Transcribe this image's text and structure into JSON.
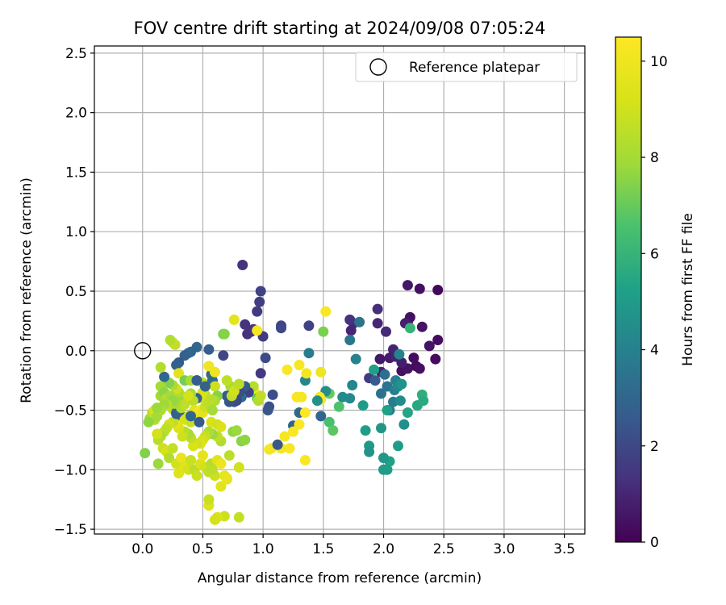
{
  "chart_data": {
    "type": "scatter",
    "title": "FOV centre drift starting at 2024/09/08 07:05:24",
    "xlabel": "Angular distance from reference (arcmin)",
    "ylabel": "Rotation from reference (arcmin)",
    "xlim": [
      -0.4,
      3.67
    ],
    "ylim": [
      -1.54,
      2.56
    ],
    "x_ticks": [
      0.0,
      0.5,
      1.0,
      1.5,
      2.0,
      2.5,
      3.0,
      3.5
    ],
    "x_tick_labels": [
      "0.0",
      "0.5",
      "1.0",
      "1.5",
      "2.0",
      "2.5",
      "3.0",
      "3.5"
    ],
    "y_ticks": [
      -1.5,
      -1.0,
      -0.5,
      0.0,
      0.5,
      1.0,
      1.5,
      2.0,
      2.5
    ],
    "y_tick_labels": [
      "−1.5",
      "−1.0",
      "−0.5",
      "0.0",
      "0.5",
      "1.0",
      "1.5",
      "2.0",
      "2.5"
    ],
    "grid": true,
    "legend": {
      "position": "top-right",
      "entries": [
        "Reference platepar"
      ]
    },
    "reference_point": {
      "x": 0.0,
      "y": 0.0,
      "name": "Reference platepar"
    },
    "colorbar": {
      "label": "Hours from first FF file",
      "colormap": "viridis",
      "range": [
        0,
        10.5
      ],
      "ticks": [
        0,
        2,
        4,
        6,
        8,
        10
      ],
      "tick_labels": [
        "0",
        "2",
        "4",
        "6",
        "8",
        "10"
      ]
    },
    "points": [
      [
        2.45,
        0.51,
        0.2
      ],
      [
        2.45,
        0.09,
        0.3
      ],
      [
        2.43,
        -0.07,
        0.3
      ],
      [
        2.38,
        0.04,
        0.5
      ],
      [
        2.3,
        0.52,
        0.4
      ],
      [
        2.2,
        0.55,
        0.6
      ],
      [
        2.22,
        0.28,
        0.4
      ],
      [
        2.2,
        0.24,
        0.5
      ],
      [
        2.18,
        0.23,
        0.8
      ],
      [
        2.15,
        -0.17,
        0.4
      ],
      [
        2.2,
        -0.15,
        0.5
      ],
      [
        2.27,
        -0.13,
        0.3
      ],
      [
        2.3,
        -0.15,
        0.4
      ],
      [
        2.32,
        0.2,
        0.5
      ],
      [
        2.25,
        -0.06,
        0.3
      ],
      [
        2.08,
        0.01,
        0.9
      ],
      [
        2.02,
        0.16,
        1.1
      ],
      [
        1.97,
        -0.07,
        0.6
      ],
      [
        1.98,
        -0.18,
        0.8
      ],
      [
        1.95,
        0.35,
        1.2
      ],
      [
        1.95,
        0.23,
        1.0
      ],
      [
        1.75,
        0.23,
        1.1
      ],
      [
        1.73,
        0.17,
        1.0
      ],
      [
        1.72,
        0.26,
        1.3
      ],
      [
        2.05,
        -0.06,
        0.7
      ],
      [
        2.1,
        -0.05,
        0.9
      ],
      [
        2.15,
        -0.1,
        0.8
      ],
      [
        1.88,
        -0.23,
        1.6
      ],
      [
        1.93,
        -0.25,
        2.6
      ],
      [
        1.98,
        -0.36,
        3.4
      ],
      [
        2.01,
        -0.2,
        3.3
      ],
      [
        2.03,
        -0.3,
        3.5
      ],
      [
        2.05,
        -0.5,
        3.6
      ],
      [
        2.08,
        -0.43,
        3.8
      ],
      [
        2.09,
        -0.33,
        3.9
      ],
      [
        2.1,
        -0.25,
        4.0
      ],
      [
        2.12,
        -0.3,
        4.3
      ],
      [
        2.14,
        -0.42,
        4.4
      ],
      [
        2.13,
        -0.03,
        4.1
      ],
      [
        2.15,
        -0.28,
        4.7
      ],
      [
        2.17,
        -0.62,
        4.5
      ],
      [
        2.12,
        -0.8,
        5.1
      ],
      [
        2.2,
        -0.52,
        5.4
      ],
      [
        2.22,
        0.19,
        6.0
      ],
      [
        2.28,
        -0.46,
        5.5
      ],
      [
        2.32,
        -0.37,
        5.8
      ],
      [
        2.33,
        -0.42,
        5.6
      ],
      [
        2.03,
        -0.5,
        5.2
      ],
      [
        2.05,
        -0.93,
        5.3
      ],
      [
        1.92,
        -0.16,
        5.2
      ],
      [
        1.83,
        -0.46,
        5.0
      ],
      [
        1.85,
        -0.67,
        5.1
      ],
      [
        1.88,
        -0.8,
        4.9
      ],
      [
        1.88,
        -0.85,
        4.7
      ],
      [
        1.98,
        -0.65,
        4.8
      ],
      [
        2.0,
        -0.9,
        4.9
      ],
      [
        2.0,
        -1.0,
        5.0
      ],
      [
        2.03,
        -1.0,
        5.1
      ],
      [
        1.77,
        -0.07,
        4.1
      ],
      [
        1.74,
        -0.29,
        4.2
      ],
      [
        1.72,
        -0.4,
        4.3
      ],
      [
        1.66,
        -0.39,
        4.4
      ],
      [
        1.63,
        -0.47,
        6.6
      ],
      [
        1.55,
        -0.36,
        7.0
      ],
      [
        1.52,
        -0.34,
        4.5
      ],
      [
        1.55,
        -0.6,
        6.5
      ],
      [
        1.58,
        -0.67,
        6.8
      ],
      [
        1.5,
        0.16,
        7.3
      ],
      [
        1.48,
        -0.41,
        10.3
      ],
      [
        1.47,
        -0.39,
        10.4
      ],
      [
        1.45,
        -0.42,
        4.6
      ],
      [
        1.38,
        -0.02,
        3.8
      ],
      [
        1.35,
        -0.25,
        4.2
      ],
      [
        1.48,
        -0.55,
        3.0
      ],
      [
        1.3,
        -0.52,
        3.1
      ],
      [
        1.25,
        -0.63,
        2.9
      ],
      [
        1.72,
        0.09,
        3.6
      ],
      [
        1.8,
        0.24,
        3.5
      ],
      [
        1.35,
        -0.92,
        10.4
      ],
      [
        1.35,
        -0.52,
        10.5
      ],
      [
        1.32,
        -0.39,
        10.2
      ],
      [
        1.28,
        -0.39,
        10.3
      ],
      [
        1.3,
        -0.62,
        10.4
      ],
      [
        1.25,
        -0.68,
        10.4
      ],
      [
        1.22,
        -0.82,
        10.3
      ],
      [
        1.18,
        -0.72,
        10.2
      ],
      [
        1.15,
        -0.82,
        10.1
      ],
      [
        1.07,
        -0.82,
        10.2
      ],
      [
        1.05,
        -0.83,
        10.2
      ],
      [
        1.2,
        -0.16,
        10.4
      ],
      [
        1.3,
        -0.12,
        10.3
      ],
      [
        1.36,
        -0.19,
        10.2
      ],
      [
        1.48,
        -0.18,
        10.0
      ],
      [
        1.52,
        0.33,
        10.4
      ],
      [
        1.38,
        0.21,
        1.8
      ],
      [
        1.15,
        0.21,
        1.9
      ],
      [
        1.15,
        0.19,
        2.0
      ],
      [
        1.12,
        -0.79,
        2.5
      ],
      [
        1.08,
        -0.37,
        2.2
      ],
      [
        1.05,
        -0.47,
        2.3
      ],
      [
        1.04,
        -0.5,
        2.4
      ],
      [
        1.02,
        -0.06,
        2.1
      ],
      [
        0.98,
        0.5,
        1.8
      ],
      [
        0.97,
        0.41,
        1.7
      ],
      [
        0.95,
        0.33,
        1.6
      ],
      [
        0.92,
        0.18,
        1.5
      ],
      [
        0.9,
        0.16,
        1.4
      ],
      [
        0.87,
        0.14,
        1.3
      ],
      [
        0.83,
        0.72,
        1.3
      ],
      [
        0.85,
        0.22,
        1.4
      ],
      [
        0.98,
        -0.19,
        1.5
      ],
      [
        1.0,
        0.12,
        1.6
      ],
      [
        0.95,
        0.17,
        10.2
      ],
      [
        0.92,
        -0.32,
        10.1
      ],
      [
        0.93,
        -0.35,
        10.3
      ],
      [
        0.95,
        -0.4,
        6.9
      ],
      [
        0.96,
        -0.42,
        8.3
      ],
      [
        0.98,
        -0.38,
        8.6
      ],
      [
        0.92,
        -0.3,
        8.4
      ],
      [
        0.88,
        -0.35,
        1.8
      ],
      [
        0.85,
        -0.3,
        2.6
      ],
      [
        0.82,
        -0.39,
        3.2
      ],
      [
        0.8,
        -0.35,
        2.2
      ],
      [
        0.78,
        -0.42,
        1.9
      ],
      [
        0.76,
        -0.43,
        2.1
      ],
      [
        0.76,
        0.26,
        9.6
      ],
      [
        0.73,
        -0.3,
        8.1
      ],
      [
        0.7,
        -0.25,
        8.6
      ],
      [
        0.67,
        0.14,
        7.2
      ],
      [
        0.68,
        0.14,
        7.5
      ],
      [
        0.67,
        -0.04,
        1.9
      ],
      [
        0.7,
        -0.38,
        2.6
      ],
      [
        0.72,
        -0.43,
        2.4
      ],
      [
        0.74,
        -0.38,
        8.7
      ],
      [
        0.76,
        -0.34,
        9.0
      ],
      [
        0.8,
        -0.28,
        8.5
      ],
      [
        0.55,
        0.01,
        2.7
      ],
      [
        0.45,
        0.03,
        3.0
      ],
      [
        0.4,
        -0.01,
        2.9
      ],
      [
        0.38,
        -0.02,
        3.1
      ],
      [
        0.35,
        -0.04,
        2.8
      ],
      [
        0.3,
        -0.1,
        2.5
      ],
      [
        0.28,
        -0.12,
        2.9
      ],
      [
        0.25,
        0.07,
        9.1
      ],
      [
        0.27,
        0.05,
        8.7
      ],
      [
        0.23,
        0.09,
        8.3
      ],
      [
        0.3,
        -0.19,
        9.5
      ],
      [
        0.35,
        -0.25,
        7.2
      ],
      [
        0.4,
        -0.25,
        8.1
      ],
      [
        0.45,
        -0.25,
        2.6
      ],
      [
        0.5,
        -0.27,
        8.4
      ],
      [
        0.57,
        -0.2,
        3.0
      ],
      [
        0.58,
        -0.25,
        3.1
      ],
      [
        0.6,
        -0.3,
        8.9
      ],
      [
        0.6,
        -0.18,
        9.9
      ],
      [
        0.55,
        -0.13,
        10.0
      ],
      [
        0.62,
        -0.38,
        7.5
      ],
      [
        0.6,
        -0.42,
        8.2
      ],
      [
        0.57,
        -0.41,
        8.4
      ],
      [
        0.52,
        -0.37,
        8.6
      ],
      [
        0.5,
        -0.4,
        8.7
      ],
      [
        0.5,
        -0.35,
        9.1
      ],
      [
        0.48,
        -0.38,
        9.3
      ],
      [
        0.45,
        -0.4,
        2.8
      ],
      [
        0.42,
        -0.42,
        8.5
      ],
      [
        0.4,
        -0.36,
        8.0
      ],
      [
        0.35,
        -0.42,
        7.6
      ],
      [
        0.32,
        -0.38,
        7.8
      ],
      [
        0.3,
        -0.35,
        8.2
      ],
      [
        0.28,
        -0.32,
        9.0
      ],
      [
        0.25,
        -0.29,
        8.1
      ],
      [
        0.22,
        -0.27,
        7.4
      ],
      [
        0.18,
        -0.22,
        3.0
      ],
      [
        0.15,
        -0.14,
        8.3
      ],
      [
        0.15,
        -0.3,
        8.0
      ],
      [
        0.15,
        -0.38,
        7.9
      ],
      [
        0.18,
        -0.35,
        7.6
      ],
      [
        0.2,
        -0.4,
        8.4
      ],
      [
        0.23,
        -0.38,
        8.0
      ],
      [
        0.25,
        -0.49,
        8.6
      ],
      [
        0.28,
        -0.52,
        3.1
      ],
      [
        0.3,
        -0.5,
        8.9
      ],
      [
        0.32,
        -0.55,
        2.8
      ],
      [
        0.35,
        -0.58,
        9.2
      ],
      [
        0.38,
        -0.55,
        9.0
      ],
      [
        0.4,
        -0.6,
        8.8
      ],
      [
        0.43,
        -0.5,
        9.5
      ],
      [
        0.45,
        -0.52,
        9.8
      ],
      [
        0.48,
        -0.5,
        10.1
      ],
      [
        0.5,
        -0.52,
        9.6
      ],
      [
        0.52,
        -0.47,
        8.9
      ],
      [
        0.55,
        -0.45,
        8.5
      ],
      [
        0.57,
        -0.6,
        9.3
      ],
      [
        0.58,
        -0.5,
        8.0
      ],
      [
        0.62,
        -0.62,
        9.0
      ],
      [
        0.65,
        -0.64,
        9.3
      ],
      [
        0.65,
        -0.76,
        8.3
      ],
      [
        0.62,
        -0.72,
        8.6
      ],
      [
        0.58,
        -0.7,
        7.8
      ],
      [
        0.55,
        -0.68,
        8.2
      ],
      [
        0.52,
        -0.72,
        8.8
      ],
      [
        0.5,
        -0.75,
        9.1
      ],
      [
        0.48,
        -0.78,
        9.4
      ],
      [
        0.45,
        -0.78,
        9.0
      ],
      [
        0.42,
        -0.8,
        9.2
      ],
      [
        0.4,
        -0.73,
        8.6
      ],
      [
        0.38,
        -0.7,
        8.1
      ],
      [
        0.35,
        -0.68,
        8.4
      ],
      [
        0.33,
        -0.72,
        8.9
      ],
      [
        0.3,
        -0.65,
        9.2
      ],
      [
        0.28,
        -0.62,
        9.5
      ],
      [
        0.25,
        -0.6,
        8.6
      ],
      [
        0.22,
        -0.62,
        9.0
      ],
      [
        0.2,
        -0.65,
        8.7
      ],
      [
        0.18,
        -0.68,
        8.5
      ],
      [
        0.15,
        -0.72,
        8.1
      ],
      [
        0.13,
        -0.75,
        8.4
      ],
      [
        0.12,
        -0.7,
        9.1
      ],
      [
        0.1,
        -0.58,
        8.3
      ],
      [
        0.08,
        -0.55,
        8.0
      ],
      [
        0.06,
        -0.57,
        7.8
      ],
      [
        0.05,
        -0.6,
        7.6
      ],
      [
        0.08,
        -0.52,
        8.6
      ],
      [
        0.1,
        -0.5,
        9.3
      ],
      [
        0.12,
        -0.55,
        8.0
      ],
      [
        0.02,
        -0.86,
        7.4
      ],
      [
        0.13,
        -0.95,
        7.8
      ],
      [
        0.17,
        -0.82,
        8.9
      ],
      [
        0.2,
        -0.85,
        9.2
      ],
      [
        0.22,
        -0.9,
        8.3
      ],
      [
        0.25,
        -0.82,
        8.7
      ],
      [
        0.28,
        -0.95,
        9.0
      ],
      [
        0.3,
        -1.03,
        9.4
      ],
      [
        0.32,
        -0.9,
        9.8
      ],
      [
        0.35,
        -0.97,
        9.5
      ],
      [
        0.38,
        -1.0,
        9.1
      ],
      [
        0.4,
        -0.92,
        8.8
      ],
      [
        0.43,
        -1.0,
        8.5
      ],
      [
        0.45,
        -1.05,
        8.9
      ],
      [
        0.48,
        -0.95,
        9.3
      ],
      [
        0.5,
        -0.88,
        9.6
      ],
      [
        0.52,
        -0.98,
        9.0
      ],
      [
        0.55,
        -1.02,
        8.7
      ],
      [
        0.57,
        -0.95,
        8.4
      ],
      [
        0.6,
        -1.05,
        8.9
      ],
      [
        0.62,
        -0.92,
        9.5
      ],
      [
        0.65,
        -0.95,
        9.9
      ],
      [
        0.68,
        -1.05,
        9.7
      ],
      [
        0.7,
        -1.08,
        9.4
      ],
      [
        0.72,
        -0.88,
        8.5
      ],
      [
        0.75,
        -0.68,
        7.6
      ],
      [
        0.78,
        -0.67,
        7.8
      ],
      [
        0.8,
        -0.98,
        9.0
      ],
      [
        0.82,
        -0.76,
        7.5
      ],
      [
        0.85,
        -0.75,
        7.6
      ],
      [
        0.8,
        -1.4,
        8.7
      ],
      [
        0.68,
        -1.39,
        8.9
      ],
      [
        0.62,
        -1.4,
        9.3
      ],
      [
        0.6,
        -1.42,
        9.1
      ],
      [
        0.55,
        -1.3,
        9.4
      ],
      [
        0.55,
        -1.25,
        8.8
      ],
      [
        0.65,
        -1.14,
        9.5
      ],
      [
        0.7,
        -1.07,
        9.8
      ],
      [
        0.58,
        -1.0,
        8.5
      ],
      [
        0.45,
        -0.25,
        2.7
      ],
      [
        0.52,
        -0.3,
        2.9
      ],
      [
        0.47,
        -0.6,
        2.6
      ],
      [
        0.4,
        -0.55,
        3.0
      ],
      [
        0.28,
        -0.53,
        2.8
      ],
      [
        0.32,
        -0.48,
        8.3
      ],
      [
        0.35,
        -0.45,
        8.6
      ],
      [
        0.38,
        -0.38,
        9.1
      ],
      [
        0.27,
        -0.44,
        8.0
      ],
      [
        0.25,
        -0.42,
        7.7
      ],
      [
        0.2,
        -0.45,
        8.5
      ],
      [
        0.18,
        -0.45,
        7.9
      ],
      [
        0.15,
        -0.5,
        8.2
      ],
      [
        0.12,
        -0.48,
        7.8
      ]
    ]
  }
}
